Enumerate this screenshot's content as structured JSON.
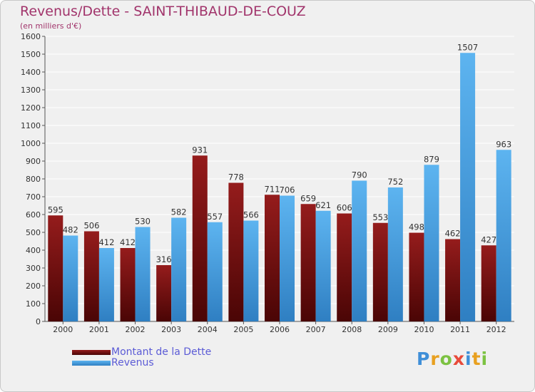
{
  "header": {
    "title": "Revenus/Dette - SAINT-THIBAUD-DE-COUZ",
    "subtitle": "(en milliers d'€)"
  },
  "chart_data": {
    "type": "bar",
    "categories": [
      "2000",
      "2001",
      "2002",
      "2003",
      "2004",
      "2005",
      "2006",
      "2007",
      "2008",
      "2009",
      "2010",
      "2011",
      "2012"
    ],
    "series": [
      {
        "name": "Montant de la Dette",
        "color": "#7a1414",
        "values": [
          595,
          506,
          412,
          316,
          931,
          778,
          711,
          659,
          606,
          553,
          498,
          462,
          427
        ]
      },
      {
        "name": "Revenus",
        "color": "#4aa5e6",
        "values": [
          482,
          412,
          530,
          582,
          557,
          566,
          706,
          621,
          790,
          752,
          879,
          1507,
          963
        ]
      }
    ],
    "ylim": [
      0,
      1600
    ],
    "yticks": [
      0,
      100,
      200,
      300,
      400,
      500,
      600,
      700,
      800,
      900,
      1000,
      1100,
      1200,
      1300,
      1400,
      1500,
      1600
    ],
    "grid": true,
    "legend_position": "bottom-left"
  },
  "logo": {
    "letters": [
      "P",
      "r",
      "o",
      "x",
      "i",
      "t",
      "i"
    ],
    "colors": [
      "#3f8fd8",
      "#e8a020",
      "#7cc242",
      "#e84a3a",
      "#3f8fd8",
      "#e8a020",
      "#7cc242"
    ]
  }
}
